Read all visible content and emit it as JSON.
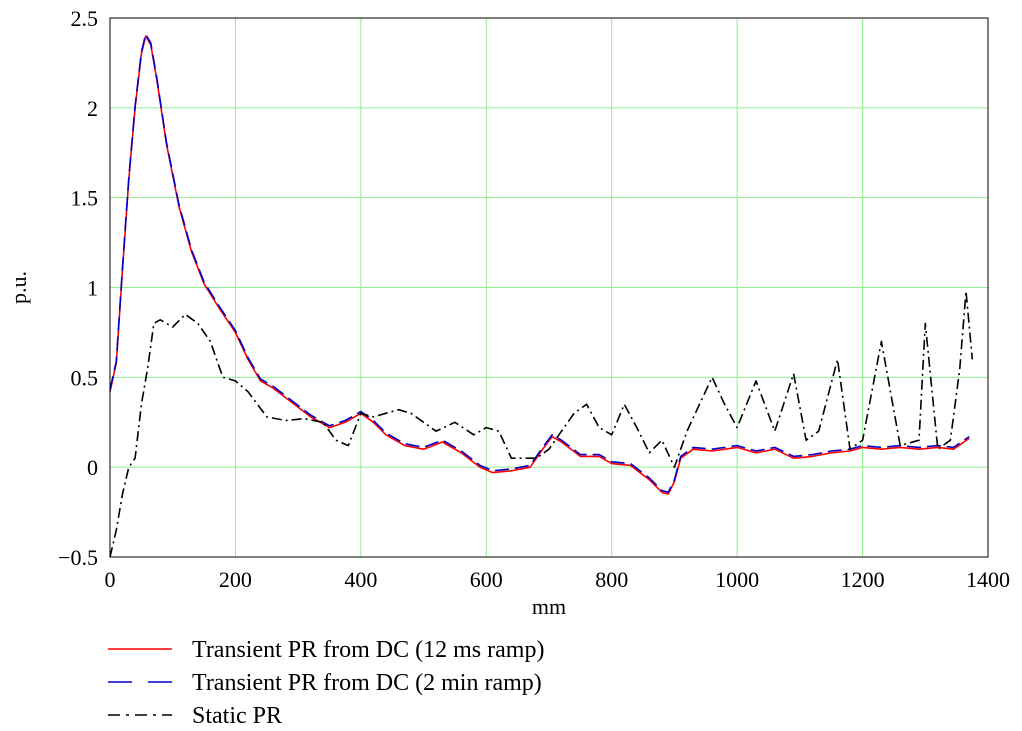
{
  "chart_data": {
    "type": "line",
    "title": "",
    "xlabel": "mm",
    "ylabel": "p.u.",
    "xlim": [
      0,
      1400
    ],
    "ylim": [
      -0.5,
      2.5
    ],
    "xticks": [
      "0",
      "200",
      "400",
      "600",
      "800",
      "1000",
      "1200",
      "1400"
    ],
    "yticks": [
      "-0.5",
      "0",
      "0.5",
      "1",
      "1.5",
      "2",
      "2.5"
    ],
    "grid": true,
    "grid_color": "#90ee90",
    "legend_placement": "bottom",
    "series": [
      {
        "name": "Transient PR from DC (12 ms ramp)",
        "color": "#ff0000",
        "dash": "solid",
        "x": [
          0,
          10,
          20,
          30,
          40,
          50,
          57,
          65,
          75,
          90,
          110,
          130,
          150,
          175,
          200,
          220,
          240,
          260,
          290,
          320,
          350,
          375,
          400,
          420,
          440,
          470,
          500,
          530,
          560,
          590,
          610,
          640,
          670,
          690,
          705,
          720,
          750,
          780,
          800,
          830,
          860,
          880,
          890,
          900,
          910,
          930,
          960,
          1000,
          1030,
          1060,
          1090,
          1120,
          1150,
          1180,
          1200,
          1230,
          1260,
          1290,
          1320,
          1345,
          1370
        ],
        "y": [
          0.42,
          0.58,
          1.1,
          1.6,
          2.0,
          2.3,
          2.4,
          2.35,
          2.15,
          1.8,
          1.45,
          1.2,
          1.02,
          0.88,
          0.75,
          0.6,
          0.48,
          0.44,
          0.36,
          0.28,
          0.22,
          0.25,
          0.3,
          0.25,
          0.18,
          0.12,
          0.1,
          0.14,
          0.08,
          0.0,
          -0.03,
          -0.02,
          0.0,
          0.1,
          0.17,
          0.14,
          0.06,
          0.06,
          0.02,
          0.01,
          -0.07,
          -0.14,
          -0.15,
          -0.08,
          0.05,
          0.1,
          0.09,
          0.11,
          0.08,
          0.1,
          0.05,
          0.06,
          0.08,
          0.09,
          0.11,
          0.1,
          0.11,
          0.1,
          0.11,
          0.1,
          0.16
        ]
      },
      {
        "name": "Transient PR from DC (2 min ramp)",
        "color": "#0000cc",
        "dash": "long-dash",
        "x": [
          0,
          10,
          20,
          30,
          40,
          50,
          57,
          65,
          75,
          90,
          110,
          130,
          150,
          175,
          200,
          220,
          240,
          260,
          290,
          320,
          350,
          375,
          400,
          420,
          440,
          470,
          500,
          530,
          560,
          590,
          610,
          640,
          670,
          690,
          705,
          720,
          750,
          780,
          800,
          830,
          860,
          880,
          890,
          900,
          910,
          930,
          960,
          1000,
          1030,
          1060,
          1090,
          1120,
          1150,
          1180,
          1200,
          1230,
          1260,
          1290,
          1320,
          1345,
          1370
        ],
        "y": [
          0.43,
          0.59,
          1.11,
          1.61,
          2.01,
          2.31,
          2.41,
          2.36,
          2.16,
          1.81,
          1.46,
          1.21,
          1.03,
          0.89,
          0.76,
          0.61,
          0.49,
          0.45,
          0.37,
          0.29,
          0.23,
          0.26,
          0.31,
          0.26,
          0.19,
          0.13,
          0.11,
          0.15,
          0.09,
          0.01,
          -0.02,
          -0.01,
          0.01,
          0.11,
          0.18,
          0.15,
          0.07,
          0.07,
          0.03,
          0.02,
          -0.06,
          -0.13,
          -0.14,
          -0.07,
          0.06,
          0.11,
          0.1,
          0.12,
          0.09,
          0.11,
          0.06,
          0.07,
          0.09,
          0.1,
          0.12,
          0.11,
          0.12,
          0.11,
          0.12,
          0.11,
          0.17
        ]
      },
      {
        "name": "Static PR",
        "color": "#000000",
        "dash": "dash-dot",
        "x": [
          0,
          10,
          20,
          30,
          40,
          50,
          60,
          70,
          80,
          100,
          120,
          140,
          160,
          180,
          200,
          220,
          250,
          280,
          310,
          340,
          360,
          380,
          400,
          420,
          440,
          460,
          480,
          500,
          520,
          550,
          580,
          600,
          620,
          640,
          660,
          680,
          700,
          720,
          740,
          760,
          780,
          800,
          820,
          840,
          860,
          880,
          900,
          920,
          940,
          960,
          980,
          1000,
          1030,
          1060,
          1090,
          1110,
          1130,
          1160,
          1180,
          1200,
          1230,
          1260,
          1290,
          1300,
          1320,
          1340,
          1355,
          1365,
          1375
        ],
        "y": [
          -0.5,
          -0.35,
          -0.15,
          0.0,
          0.05,
          0.35,
          0.55,
          0.8,
          0.82,
          0.78,
          0.85,
          0.8,
          0.7,
          0.5,
          0.48,
          0.42,
          0.28,
          0.26,
          0.27,
          0.25,
          0.15,
          0.12,
          0.3,
          0.28,
          0.3,
          0.32,
          0.3,
          0.25,
          0.2,
          0.25,
          0.18,
          0.22,
          0.2,
          0.05,
          0.05,
          0.05,
          0.1,
          0.2,
          0.3,
          0.35,
          0.22,
          0.18,
          0.35,
          0.22,
          0.08,
          0.15,
          0.0,
          0.2,
          0.35,
          0.5,
          0.35,
          0.22,
          0.48,
          0.2,
          0.52,
          0.15,
          0.2,
          0.6,
          0.1,
          0.15,
          0.7,
          0.12,
          0.15,
          0.8,
          0.1,
          0.15,
          0.55,
          0.98,
          0.6
        ]
      }
    ]
  }
}
